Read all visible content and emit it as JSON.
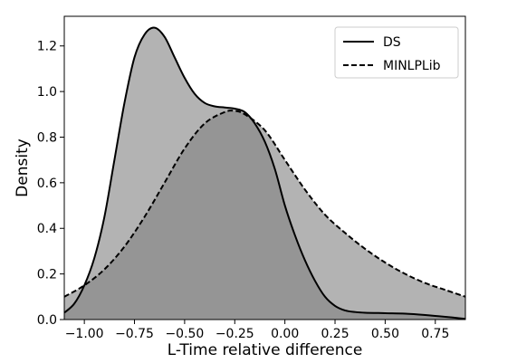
{
  "chart_data": {
    "type": "area",
    "xlabel": "L-Time relative difference",
    "ylabel": "Density",
    "xlim": [
      -1.1,
      0.9
    ],
    "ylim": [
      0,
      1.33
    ],
    "xticks": [
      -1.0,
      -0.75,
      -0.5,
      -0.25,
      0.0,
      0.25,
      0.5,
      0.75
    ],
    "xtick_labels": [
      "−1.00",
      "−0.75",
      "−0.50",
      "−0.25",
      "0.00",
      "0.25",
      "0.50",
      "0.75"
    ],
    "yticks": [
      0.0,
      0.2,
      0.4,
      0.6,
      0.8,
      1.0,
      1.2
    ],
    "ytick_labels": [
      "0.0",
      "0.2",
      "0.4",
      "0.6",
      "0.8",
      "1.0",
      "1.2"
    ],
    "grid": false,
    "legend_position": "top-right",
    "series": [
      {
        "name": "DS",
        "line_style": "solid",
        "color": "#000000",
        "x": [
          -1.1,
          -1.05,
          -1.0,
          -0.95,
          -0.9,
          -0.85,
          -0.8,
          -0.75,
          -0.7,
          -0.65,
          -0.6,
          -0.55,
          -0.5,
          -0.45,
          -0.4,
          -0.35,
          -0.3,
          -0.25,
          -0.2,
          -0.15,
          -0.1,
          -0.05,
          0.0,
          0.05,
          0.1,
          0.15,
          0.2,
          0.25,
          0.3,
          0.35,
          0.4,
          0.5,
          0.6,
          0.7,
          0.8,
          0.9
        ],
        "values": [
          0.03,
          0.07,
          0.15,
          0.27,
          0.45,
          0.7,
          0.95,
          1.15,
          1.25,
          1.28,
          1.24,
          1.15,
          1.06,
          0.99,
          0.95,
          0.935,
          0.93,
          0.925,
          0.91,
          0.86,
          0.78,
          0.66,
          0.5,
          0.37,
          0.26,
          0.17,
          0.1,
          0.06,
          0.04,
          0.033,
          0.03,
          0.028,
          0.026,
          0.02,
          0.012,
          0.003
        ]
      },
      {
        "name": "MINLPLib",
        "line_style": "dashed",
        "color": "#000000",
        "x": [
          -1.1,
          -1.0,
          -0.9,
          -0.8,
          -0.7,
          -0.6,
          -0.5,
          -0.4,
          -0.3,
          -0.25,
          -0.2,
          -0.1,
          0.0,
          0.1,
          0.2,
          0.3,
          0.4,
          0.5,
          0.6,
          0.7,
          0.8,
          0.9
        ],
        "values": [
          0.1,
          0.15,
          0.22,
          0.32,
          0.45,
          0.6,
          0.75,
          0.86,
          0.91,
          0.915,
          0.9,
          0.83,
          0.7,
          0.57,
          0.46,
          0.38,
          0.31,
          0.25,
          0.2,
          0.16,
          0.13,
          0.1
        ]
      }
    ]
  }
}
